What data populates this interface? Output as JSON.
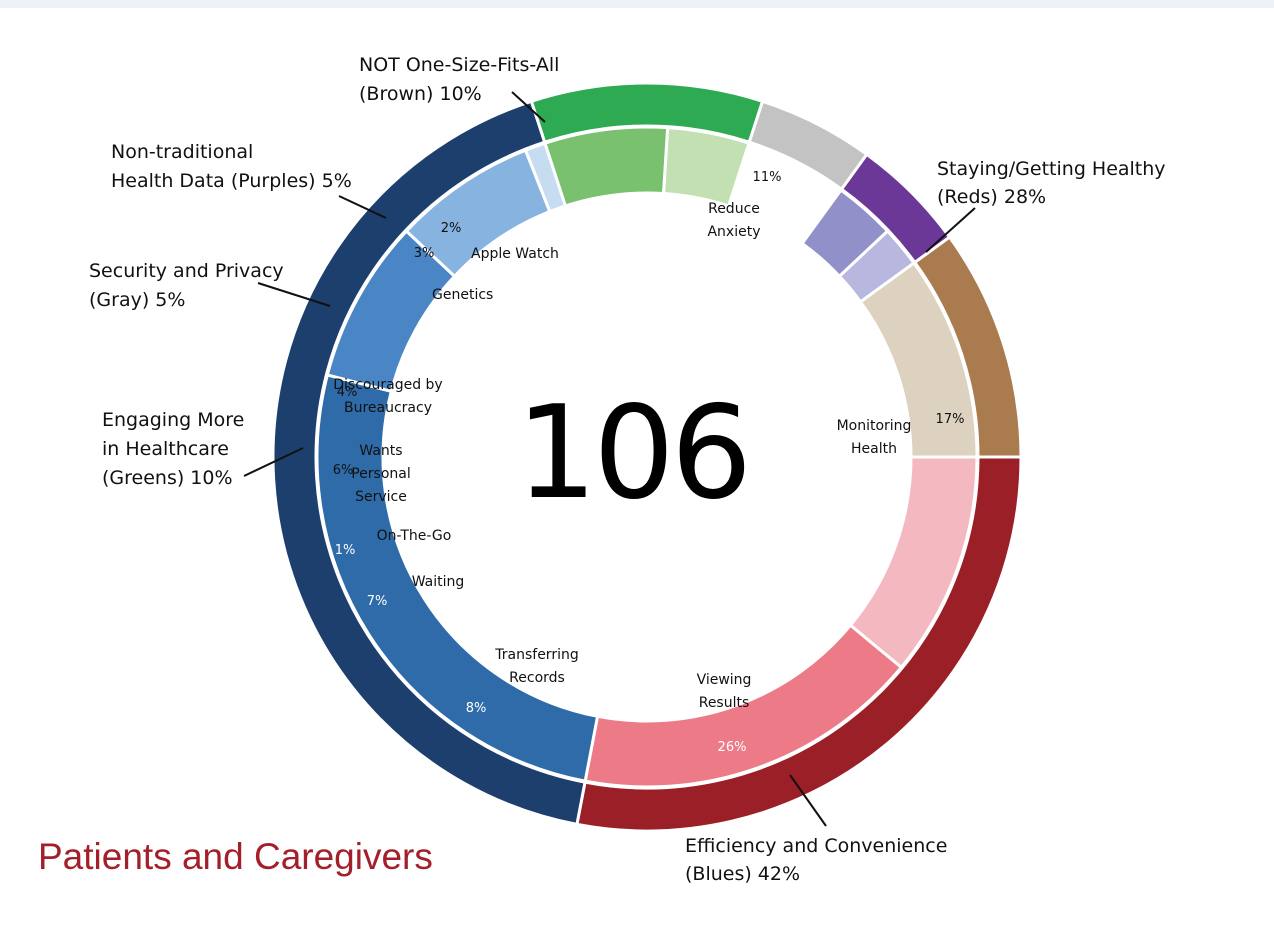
{
  "header": {
    "band_color": "#eef2f8"
  },
  "footer": {
    "title": "Patients and Caregivers",
    "color": "#a3202b"
  },
  "chart_data": {
    "type": "pie",
    "subtype": "nested-donut",
    "center_value": "106",
    "groups": [
      {
        "name_lines": [
          "Staying/Getting Healthy",
          "(Reds) 28%"
        ],
        "value": 28,
        "color": "#9a1f27",
        "children": [
          {
            "label_lines": [
              "Reduce",
              "Anxiety"
            ],
            "pct_text": "11%",
            "value": 11,
            "color": "#f4b9c0",
            "pct_color": "#111111"
          },
          {
            "label_lines": [
              "Monitoring",
              "Health"
            ],
            "pct_text": "17%",
            "value": 17,
            "color": "#ec7a87",
            "pct_color": "#111111"
          }
        ]
      },
      {
        "name_lines": [
          "Efficiency and Convenience",
          "(Blues) 42%"
        ],
        "value": 42,
        "color": "#1c3f6e",
        "children": [
          {
            "label_lines": [
              "Viewing",
              "Results"
            ],
            "pct_text": "26%",
            "value": 26,
            "color": "#2f6ba8",
            "pct_color": "#ffffff"
          },
          {
            "label_lines": [
              "Transferring",
              "Records"
            ],
            "pct_text": "8%",
            "value": 8,
            "color": "#4a86c6",
            "pct_color": "#ffffff"
          },
          {
            "label_lines": [
              "Waiting"
            ],
            "pct_text": "7%",
            "value": 7,
            "color": "#86b3e0",
            "pct_color": "#ffffff"
          },
          {
            "label_lines": [
              "On-The-Go"
            ],
            "pct_text": "1%",
            "value": 1,
            "color": "#c6dcf1",
            "pct_color": "#ffffff"
          }
        ]
      },
      {
        "name_lines": [
          "Engaging More",
          "in Healthcare",
          "(Greens) 10%"
        ],
        "value": 10,
        "color": "#2eaa52",
        "children": [
          {
            "label_lines": [
              "Wants",
              "Personal",
              "Service"
            ],
            "pct_text": "6%",
            "value": 6,
            "color": "#79c16f",
            "pct_color": "#111111"
          },
          {
            "label_lines": [
              "Discouraged by",
              "Bureaucracy"
            ],
            "pct_text": "4%",
            "value": 4,
            "color": "#c3e0b3",
            "pct_color": "#111111"
          }
        ]
      },
      {
        "name_lines": [
          "Security and Privacy",
          "(Gray) 5%"
        ],
        "value": 5,
        "color": "#c3c3c3",
        "children": []
      },
      {
        "name_lines": [
          "Non-traditional",
          "Health Data (Purples) 5%"
        ],
        "value": 5,
        "color": "#6b3898",
        "children": [
          {
            "label_lines": [
              "Genetics"
            ],
            "pct_text": "3%",
            "value": 3,
            "color": "#9190c8",
            "pct_color": "#111111"
          },
          {
            "label_lines": [
              "Apple Watch"
            ],
            "pct_text": "2%",
            "value": 2,
            "color": "#b8b7df",
            "pct_color": "#111111"
          }
        ]
      },
      {
        "name_lines": [
          "NOT One-Size-Fits-All",
          "(Brown) 10%"
        ],
        "value": 10,
        "color": "#a97b4f",
        "children": [
          {
            "label_lines": [],
            "pct_text": "",
            "value": 10,
            "color": "#ddd2bf",
            "pct_color": "#111111"
          }
        ]
      }
    ]
  }
}
